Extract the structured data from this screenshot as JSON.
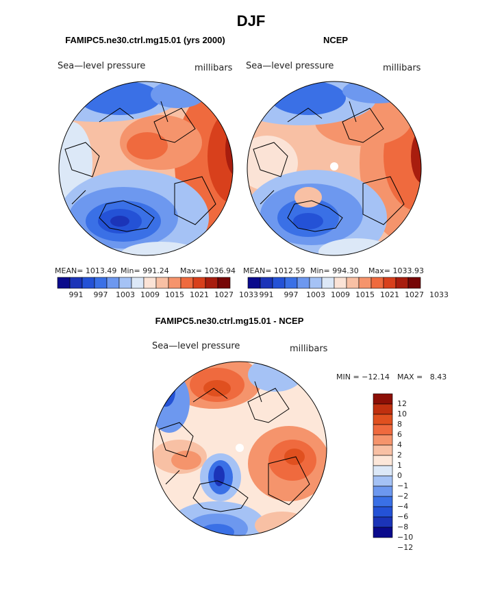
{
  "page": {
    "title": "DJF"
  },
  "colors": {
    "hbar_12": [
      "#0a0a8c",
      "#1b34b8",
      "#2452d6",
      "#3a70e6",
      "#6d98ef",
      "#a5c2f5",
      "#dce8f7",
      "#fbe3d6",
      "#f8c0a4",
      "#f5946c",
      "#ef6a3e",
      "#d8401c",
      "#a81d0e",
      "#760606"
    ],
    "vbar_diff": [
      "#0a0a8c",
      "#1b34b8",
      "#2452d6",
      "#3a70e6",
      "#6d98ef",
      "#a5c2f5",
      "#dce8f7",
      "#fde7d9",
      "#f8c0a4",
      "#f5946c",
      "#ef6a3e",
      "#e0501f",
      "#c0300f",
      "#8c0f06"
    ]
  },
  "panels": [
    {
      "id": "model",
      "title": "FAMIPC5.ne30.ctrl.mg15.01 (yrs 2000)",
      "left_label": "Sea—level pressure",
      "right_label": "millibars",
      "stats": {
        "mean": "MEAN= 1013.49",
        "min": "Min= 991.24",
        "max": "Max= 1036.94"
      },
      "colorbar_ticks": [
        "991",
        "997",
        "1003",
        "1009",
        "1015",
        "1021",
        "1027",
        "1033"
      ]
    },
    {
      "id": "obs",
      "title": "NCEP",
      "left_label": "Sea—level pressure",
      "right_label": "millibars",
      "stats": {
        "mean": "MEAN= 1012.59",
        "min": "Min= 994.30",
        "max": "Max= 1033.93"
      },
      "colorbar_ticks": [
        "991",
        "997",
        "1003",
        "1009",
        "1015",
        "1021",
        "1027",
        "1033"
      ]
    }
  ],
  "diff": {
    "title": "FAMIPC5.ne30.ctrl.mg15.01 - NCEP",
    "left_label": "Sea—level pressure",
    "right_label": "millibars",
    "min_label": "MIN = −12.14",
    "max_label": "MAX =   8.43",
    "colorbar_ticks": [
      "12",
      "10",
      "8",
      "6",
      "4",
      "2",
      "1",
      "0",
      "−1",
      "−2",
      "−4",
      "−6",
      "−8",
      "−10",
      "−12"
    ]
  }
}
